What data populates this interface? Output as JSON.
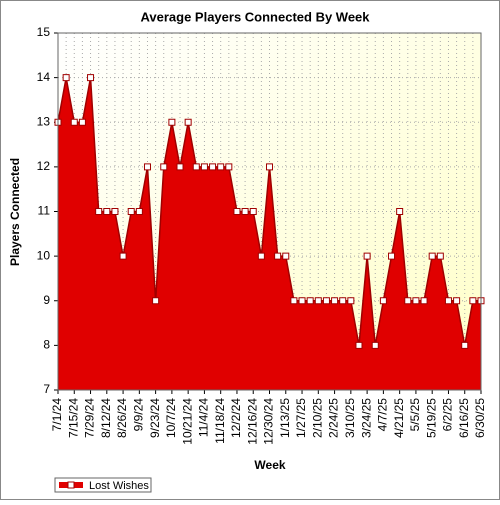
{
  "chart_data": {
    "type": "area",
    "title": "Average Players Connected By Week",
    "x_label": "Week",
    "y_label": "Players Connected",
    "categories": [
      "7/1/24",
      null,
      "7/15/24",
      null,
      "7/29/24",
      null,
      "8/12/24",
      null,
      "8/26/24",
      null,
      "9/9/24",
      null,
      "9/23/24",
      null,
      "10/7/24",
      null,
      "10/21/24",
      null,
      "11/4/24",
      null,
      "11/18/24",
      null,
      "12/2/24",
      null,
      "12/16/24",
      null,
      "12/30/24",
      null,
      "1/13/25",
      null,
      "1/27/25",
      null,
      "2/10/25",
      null,
      "2/24/25",
      null,
      "3/10/25",
      null,
      "3/24/25",
      null,
      "4/7/25",
      null,
      "4/21/25",
      null,
      "5/5/25",
      null,
      "5/19/25",
      null,
      "6/2/25",
      null,
      "6/16/25",
      null,
      "6/30/25"
    ],
    "series": [
      {
        "name": "Lost Wishes",
        "color": "#e00000",
        "values": [
          13,
          14,
          13,
          13,
          14,
          11,
          11,
          11,
          10,
          11,
          11,
          12,
          9,
          12,
          13,
          12,
          13,
          12,
          12,
          12,
          12,
          12,
          11,
          11,
          11,
          10,
          12,
          10,
          10,
          9,
          9,
          9,
          9,
          9,
          9,
          9,
          9,
          8,
          10,
          8,
          9,
          10,
          11,
          9,
          9,
          9,
          10,
          10,
          9,
          9,
          8,
          9,
          9
        ]
      }
    ],
    "ylim": [
      7,
      15
    ],
    "yticks": [
      7,
      8,
      9,
      10,
      11,
      12,
      13,
      14,
      15
    ],
    "grid": true,
    "legend": "bottom-left"
  }
}
